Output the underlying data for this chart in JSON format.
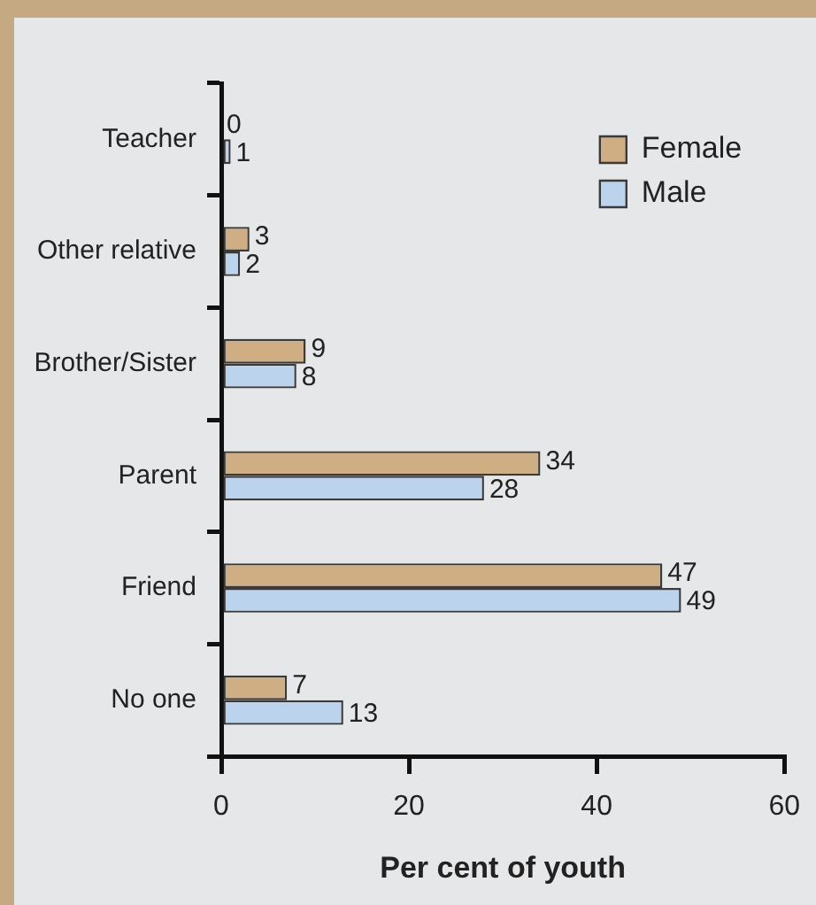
{
  "chart_data": {
    "type": "bar",
    "orientation": "horizontal",
    "categories": [
      "Teacher",
      "Other relative",
      "Brother/Sister",
      "Parent",
      "Friend",
      "No one"
    ],
    "series": [
      {
        "name": "Female",
        "color": "#cfae84",
        "values": [
          0,
          3,
          9,
          34,
          47,
          7
        ]
      },
      {
        "name": "Male",
        "color": "#bcd3ee",
        "values": [
          1,
          2,
          8,
          28,
          49,
          13
        ]
      }
    ],
    "xlabel": "Per cent of youth",
    "xlim": [
      0,
      60
    ],
    "xticks": [
      0,
      20,
      40,
      60
    ],
    "grid": false,
    "legend": "top right",
    "data_labels": true
  }
}
